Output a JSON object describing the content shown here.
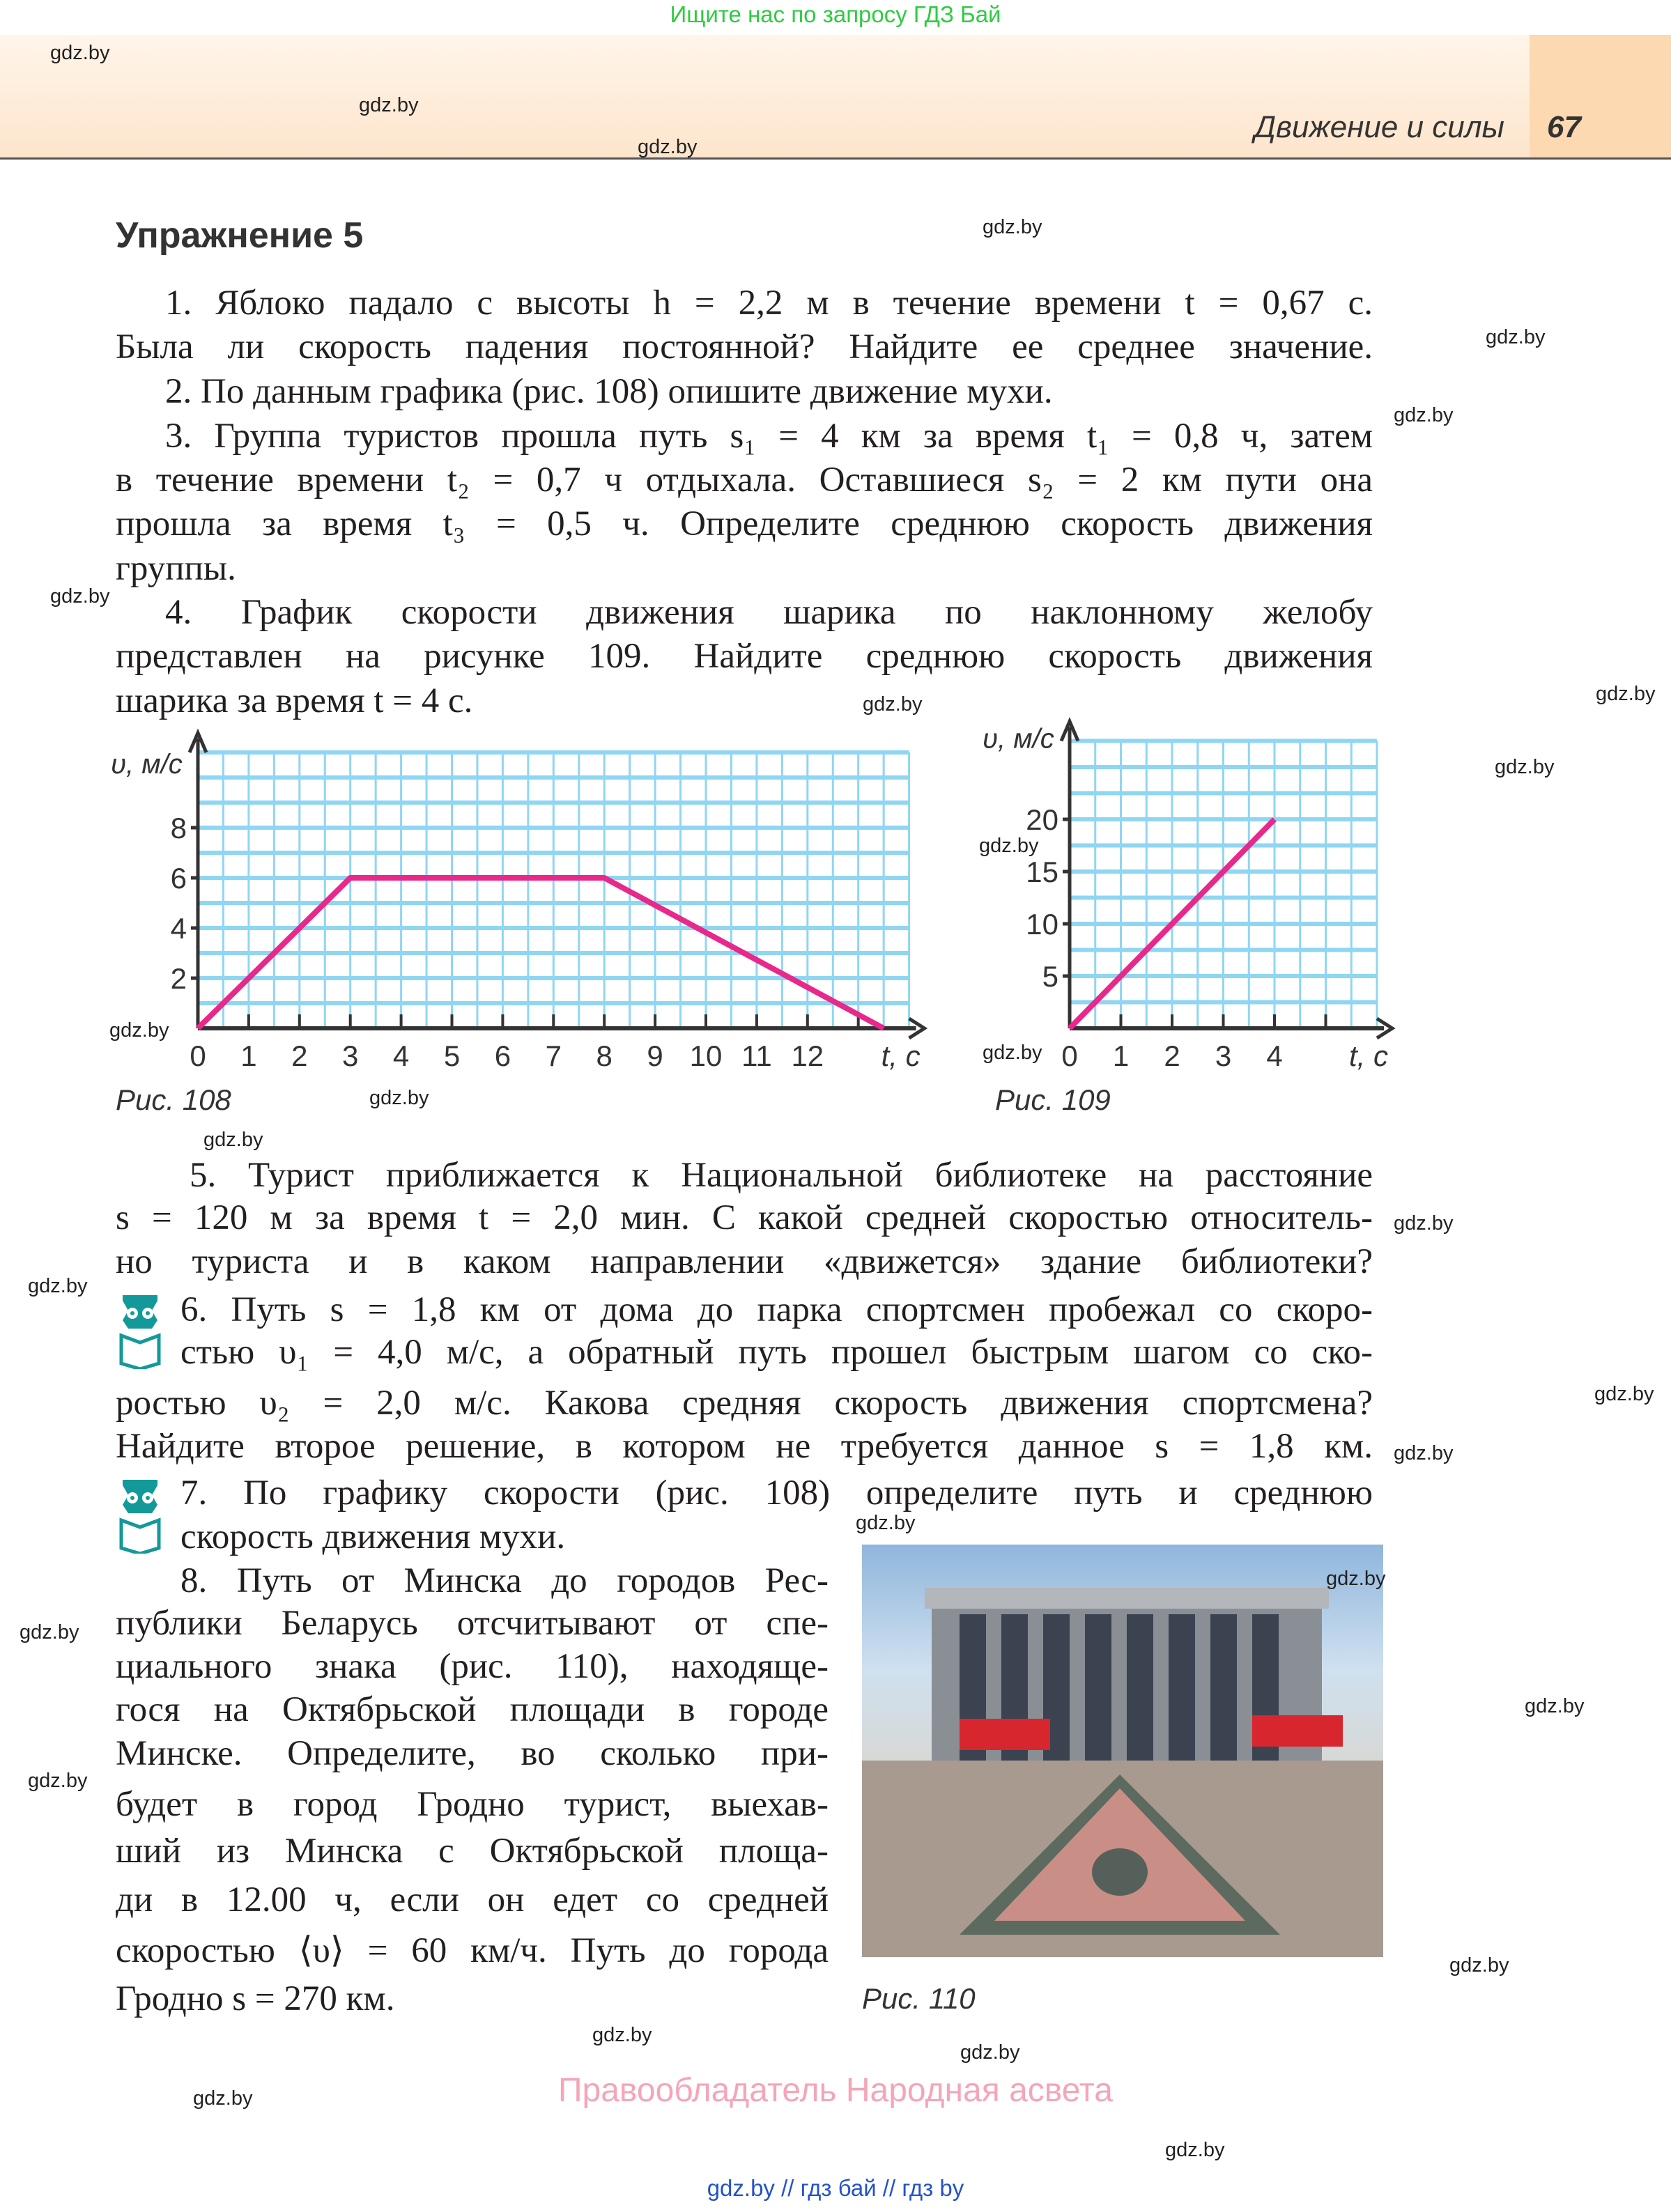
{
  "header": {
    "top_note": "Ищите нас по запросу ГДЗ Бай",
    "section_title": "Движение и силы",
    "page_number": "67"
  },
  "exercise_title": "Упражнение 5",
  "watermark": "gdz.by",
  "lines": [
    "1. Яблоко падало с высоты h = 2,2 м в течение времени t = 0,67 с.",
    "Была ли скорость падения постоянной? Найдите ее среднее значение.",
    "2. По данным графика (рис. 108) опишите движение мухи.",
    "3. Группа туристов прошла путь s₁ = 4 км за время t₁ = 0,8 ч, затем",
    "в течение времени t₂ = 0,7 ч отдыхала. Оставшиеся s₂ = 2 км пути она",
    "прошла за время t₃ = 0,5 ч. Определите среднюю скорость движения",
    "группы.",
    "4. График скорости движения шарика по наклонному желобу",
    "представлен на рисунке 109. Найдите среднюю скорость движения",
    "шарика за время t = 4 с.",
    "5. Турист приближается к Национальной библиотеке на расстояние",
    "s = 120 м за время t = 2,0 мин. С какой средней скоростью относитель-",
    "но туриста и в каком направлении «движется» здание библиотеки?",
    "6. Путь s = 1,8 км от дома до парка спортсмен пробежал со скоро-",
    "стью υ₁ = 4,0 м/с, а обратный путь прошел быстрым шагом со ско-",
    "ростью υ₂ = 2,0 м/с. Какова средняя скорость движения спортсмена?",
    "Найдите второе решение, в котором не требуется данное s = 1,8 км.",
    "7. По графику скорости (рис. 108) определите путь и среднюю",
    "скорость движения мухи.",
    "8. Путь от Минска до городов Рес-",
    "публики Беларусь отсчитывают от спе-",
    "циального знака (рис. 110), находяще-",
    "гося на Октябрьской площади в городе",
    "Минске. Определите, во сколько при-",
    "будет в город Гродно турист, выехав-",
    "ший из Минска с Октябрьской площа-",
    "ди в 12.00 ч, если он едет со средней",
    "скоростью ⟨υ⟩ = 60 км/ч. Путь до города",
    "Гродно s = 270 км."
  ],
  "figures": {
    "fig108": "Рис. 108",
    "fig109": "Рис. 109",
    "fig110": "Рис. 110"
  },
  "chart_data": [
    {
      "type": "line",
      "ylabel": "υ, м/с",
      "xlabel": "t, с",
      "xlim": [
        0,
        14
      ],
      "ylim": [
        0,
        11
      ],
      "grid": true,
      "xticks": [
        0,
        1,
        2,
        3,
        4,
        5,
        6,
        7,
        8,
        9,
        10,
        11,
        12
      ],
      "yticks": [
        2,
        4,
        6,
        8
      ],
      "x": [
        0,
        3,
        8,
        13.5
      ],
      "y": [
        0,
        6,
        6,
        0
      ],
      "color": "#e8288a",
      "grid_color": "#8fd6f3"
    },
    {
      "type": "line",
      "ylabel": "υ, м/с",
      "xlabel": "t, с",
      "xlim": [
        0,
        6
      ],
      "ylim": [
        0,
        27.5
      ],
      "grid": true,
      "xticks": [
        0,
        1,
        2,
        3,
        4
      ],
      "yticks": [
        5,
        10,
        15,
        20
      ],
      "x": [
        0,
        4
      ],
      "y": [
        0,
        20
      ],
      "color": "#e8288a",
      "grid_color": "#8fd6f3"
    }
  ],
  "footer": {
    "rights": "Правообладатель Народная асвета",
    "links": "gdz.by  //  гдз бай  //  гдз by"
  }
}
